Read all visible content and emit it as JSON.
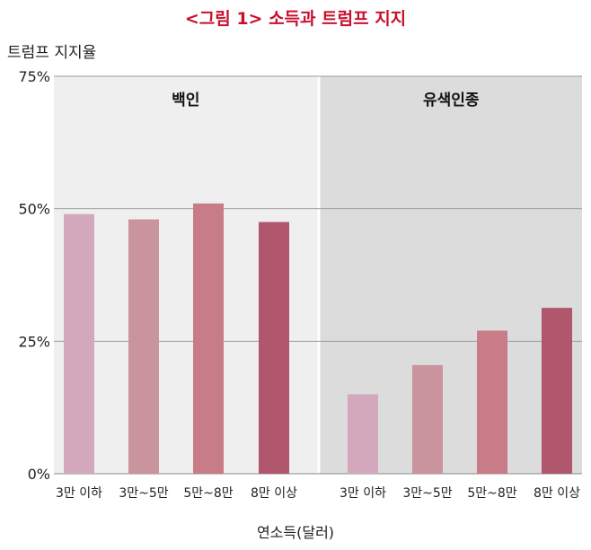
{
  "chart_data": {
    "type": "bar",
    "title": "<그림 1> 소득과 트럼프 지지",
    "ylabel": "트럼프 지지율",
    "xlabel": "연소득(달러)",
    "ylim": [
      0,
      75
    ],
    "yticks": [
      0,
      25,
      50,
      75
    ],
    "ytick_labels": [
      "0%",
      "25%",
      "50%",
      "75%"
    ],
    "panels": [
      {
        "name": "백인",
        "categories": [
          "3만 이하",
          "3만~5만",
          "5만~8만",
          "8만 이상"
        ],
        "values": [
          49,
          48,
          51,
          47.5
        ],
        "colors": [
          "#d4a8bc",
          "#c9949e",
          "#c87c87",
          "#b0566d"
        ]
      },
      {
        "name": "유색인종",
        "categories": [
          "3만 이하",
          "3만~5만",
          "5만~8만",
          "8만 이상"
        ],
        "values": [
          15,
          20.5,
          27,
          31.3
        ],
        "colors": [
          "#d4a8bc",
          "#c9949e",
          "#c87c87",
          "#b0566d"
        ]
      }
    ],
    "panel_backgrounds": [
      "#efefef",
      "#dcdcdc"
    ],
    "gridline_color": "#9a9a9a"
  }
}
